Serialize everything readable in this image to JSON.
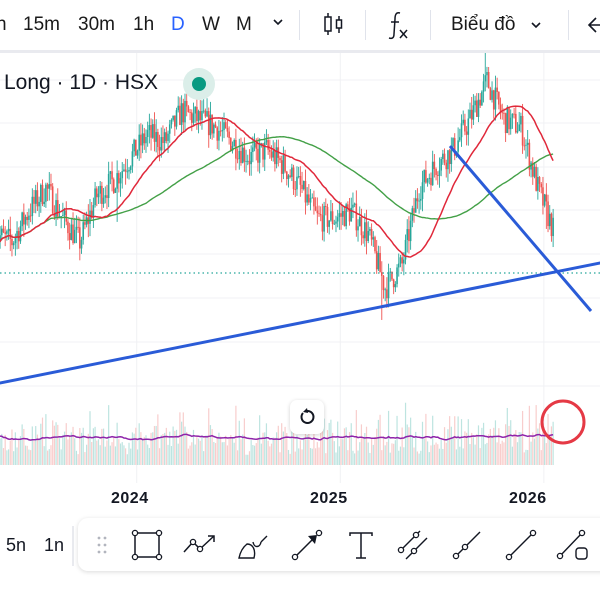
{
  "toolbar": {
    "timeframes": [
      {
        "label": "n",
        "active": false
      },
      {
        "label": "15m",
        "active": false
      },
      {
        "label": "30m",
        "active": false
      },
      {
        "label": "1h",
        "active": false
      },
      {
        "label": "D",
        "active": true
      },
      {
        "label": "W",
        "active": false
      },
      {
        "label": "M",
        "active": false
      }
    ],
    "more_timeframes_icon": "chevron-down-icon",
    "candles_icon": "candlestick-icon",
    "indicators_icon": "function-fx-icon",
    "chart_type_label": "Biểu đồ",
    "back_icon": "arrow-left-icon"
  },
  "legend": {
    "title": "Long · 1D · HSX",
    "market_status": "open",
    "status_color": "#089981"
  },
  "colors": {
    "up": "#26a69a",
    "down": "#ef5350",
    "ma_short": "#e0283a",
    "ma_long": "#43a047",
    "trendline": "#2a5bd7",
    "volume_ma": "#8e24aa",
    "annotation": "#e53945",
    "price_line": "#26a69a"
  },
  "chart_data": {
    "type": "candlestick",
    "title": "Long · 1D · HSX",
    "interval": "1D",
    "exchange": "HSX",
    "x_tick_labels": [
      "2024",
      "2025",
      "2026"
    ],
    "x_range": [
      "2023-05",
      "2026-03"
    ],
    "y_axis": "hidden",
    "grid": true,
    "price_path": {
      "unit": "relative price",
      "dates": [
        "2023-05",
        "2023-06",
        "2023-07",
        "2023-08",
        "2023-09",
        "2023-10",
        "2023-11",
        "2023-12",
        "2024-01",
        "2024-02",
        "2024-03",
        "2024-04",
        "2024-05",
        "2024-06",
        "2024-07",
        "2024-08",
        "2024-09",
        "2024-10",
        "2024-11",
        "2024-12",
        "2025-01",
        "2025-02",
        "2025-03",
        "2025-04",
        "2025-05",
        "2025-06",
        "2025-07",
        "2025-08",
        "2025-09",
        "2025-10",
        "2025-11",
        "2025-12",
        "2026-01",
        "2026-02"
      ],
      "close": [
        100,
        98,
        106,
        112,
        104,
        98,
        110,
        114,
        120,
        126,
        124,
        132,
        130,
        128,
        124,
        120,
        122,
        118,
        112,
        104,
        104,
        106,
        100,
        86,
        92,
        112,
        118,
        122,
        130,
        140,
        130,
        128,
        112,
        100
      ]
    },
    "series": [
      {
        "name": "Price",
        "kind": "candles"
      },
      {
        "name": "MA short",
        "kind": "line",
        "color": "#e0283a"
      },
      {
        "name": "MA long",
        "kind": "line",
        "color": "#43a047"
      },
      {
        "name": "Volume",
        "kind": "histogram",
        "pane": "volume"
      },
      {
        "name": "Volume MA",
        "kind": "line",
        "pane": "volume",
        "color": "#8e24aa"
      }
    ],
    "last_price_line": {
      "style": "dotted",
      "color": "#26a69a"
    },
    "drawings": [
      {
        "type": "trendline",
        "name": "Ascending support",
        "from": [
          "2023-05",
          72
        ],
        "to": [
          "2026-03",
          100
        ]
      },
      {
        "type": "trendline",
        "name": "Descending line",
        "from": [
          "2025-09",
          134
        ],
        "to": [
          "2026-03",
          90
        ]
      },
      {
        "type": "circle",
        "name": "Volume spike highlight",
        "at": "2026-02"
      }
    ]
  },
  "controls": {
    "reset_icon": "reset-rotate-icon"
  },
  "bottom": {
    "ranges": [
      "5n",
      "1n"
    ],
    "draw_tools": [
      {
        "icon": "rectangle-icon"
      },
      {
        "icon": "path-arrow-icon"
      },
      {
        "icon": "brush-icon"
      },
      {
        "icon": "arrow-icon"
      },
      {
        "icon": "text-icon"
      },
      {
        "icon": "parallel-channel-icon"
      },
      {
        "icon": "ray-icon"
      },
      {
        "icon": "trend-line-icon"
      },
      {
        "icon": "trend-line-box-icon"
      }
    ]
  }
}
